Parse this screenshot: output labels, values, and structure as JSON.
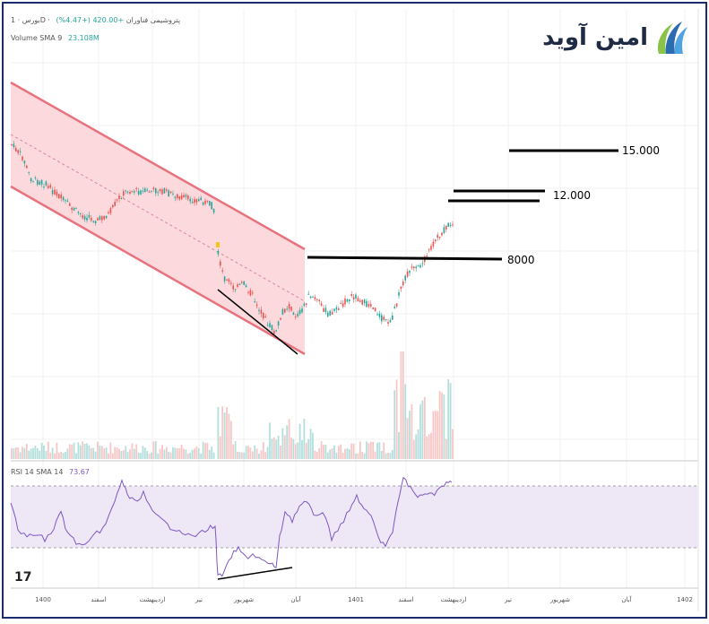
{
  "header": {
    "symbol_line": "بورس · 1D · پتروشیمی فناوران",
    "change": "+420.00 (+4.47%)",
    "volume_label": "Volume SMA 9",
    "volume_value": "23.108M"
  },
  "rsi_header": {
    "label": "RSI 14 SMA 14",
    "value": "73.67"
  },
  "logo": {
    "text": "امین آوید"
  },
  "watermark": "17",
  "chart_data": {
    "type": "candlestick",
    "x_ticks": [
      "1400",
      "اسفند",
      "اردیبهشت",
      "تیر",
      "شهریور",
      "آبان",
      "1401",
      "اسفند",
      "اردیبهشت",
      "تیر",
      "شهریور",
      "آبان",
      "1402"
    ],
    "levels": [
      {
        "label": "15.000"
      },
      {
        "label": "12.000"
      },
      {
        "label": "8000"
      }
    ],
    "rsi_band": [
      30,
      70
    ],
    "colors": {
      "up": "#26a69a",
      "down": "#ef5350",
      "channel_fill": "#fcd9dc",
      "channel_line": "#e8727d",
      "rsi_line": "#7e57c2",
      "rsi_band": "#ede7f6",
      "level_line": "#000000"
    }
  }
}
